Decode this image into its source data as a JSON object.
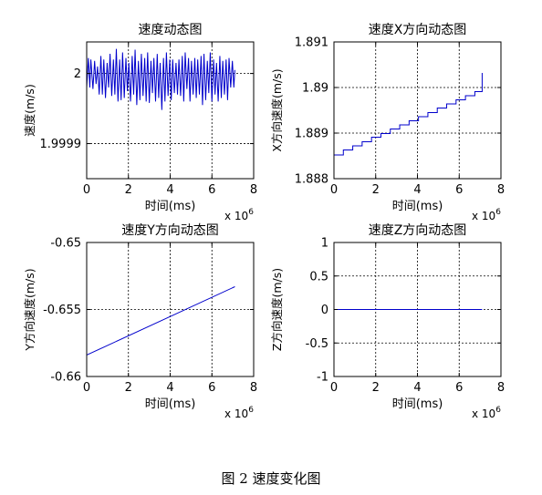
{
  "figure": {
    "caption": "图 2  速度变化图"
  },
  "chart_data": [
    {
      "type": "line",
      "title": "速度动态图",
      "xlabel": "时间(ms)",
      "ylabel": "速度(m/s)",
      "x_multiplier": "x 10",
      "x_multiplier_exp": "6",
      "xlim": [
        0,
        8
      ],
      "ylim": [
        1.99985,
        2.000045
      ],
      "xticks": [
        0,
        2,
        4,
        6,
        8
      ],
      "xtick_labels": [
        "0",
        "2",
        "4",
        "6",
        "8"
      ],
      "yticks": [
        1.9999,
        2.0
      ],
      "ytick_labels": [
        "1.9999",
        "2"
      ],
      "grid": true,
      "color": "#0000cc",
      "series": [
        {
          "x": [
            0.0,
            0.08,
            0.15,
            0.2,
            0.3,
            0.38,
            0.45,
            0.52,
            0.6,
            0.68,
            0.75,
            0.82,
            0.9,
            0.98,
            1.05,
            1.12,
            1.2,
            1.28,
            1.35,
            1.42,
            1.5,
            1.58,
            1.65,
            1.72,
            1.8,
            1.88,
            1.95,
            2.02,
            2.1,
            2.18,
            2.25,
            2.32,
            2.4,
            2.48,
            2.55,
            2.62,
            2.7,
            2.78,
            2.85,
            2.92,
            3.0,
            3.08,
            3.15,
            3.22,
            3.3,
            3.38,
            3.45,
            3.52,
            3.6,
            3.68,
            3.75,
            3.82,
            3.9,
            3.98,
            4.05,
            4.12,
            4.2,
            4.28,
            4.35,
            4.42,
            4.5,
            4.58,
            4.65,
            4.72,
            4.8,
            4.88,
            4.95,
            5.02,
            5.1,
            5.18,
            5.25,
            5.32,
            5.4,
            5.48,
            5.55,
            5.62,
            5.7,
            5.78,
            5.85,
            5.92,
            6.0,
            6.08,
            6.15,
            6.22,
            6.3,
            6.38,
            6.45,
            6.52,
            6.6,
            6.68,
            6.75,
            6.82,
            6.9,
            6.98,
            7.05,
            7.1
          ],
          "y": [
            1.99998,
            2.000022,
            1.99998,
            2.00002,
            1.999978,
            2.000018,
            1.999985,
            2.00001,
            1.99997,
            2.000025,
            1.99997,
            2.00002,
            1.999965,
            2.000015,
            1.99998,
            2.000028,
            1.999968,
            2.00002,
            1.99997,
            2.000035,
            1.99996,
            2.00002,
            1.999962,
            2.00003,
            1.999965,
            2.000022,
            1.999975,
            2.000015,
            1.99996,
            2.000025,
            1.99997,
            2.000034,
            1.999955,
            2.000018,
            1.999962,
            2.000028,
            1.999968,
            2.000022,
            1.99996,
            2.00003,
            1.999958,
            2.000018,
            1.999972,
            2.000022,
            1.99996,
            2.000028,
            1.999965,
            2.000015,
            1.999948,
            2.000022,
            1.99996,
            2.00003,
            1.999968,
            2.00002,
            1.999962,
            2.00002,
            1.999972,
            2.000015,
            1.99997,
            2.00002,
            1.999968,
            2.000025,
            1.99996,
            2.00003,
            1.999978,
            2.000022,
            1.99996,
            2.000018,
            1.99997,
            2.000022,
            1.999965,
            2.00002,
            1.99997,
            2.000025,
            1.999955,
            2.000028,
            1.999962,
            2.000018,
            1.999972,
            2.00003,
            1.99996,
            2.00002,
            1.99997,
            2.000015,
            1.99996,
            2.000025,
            1.999965,
            2.000018,
            1.99997,
            2.00002,
            1.999962,
            2.000022,
            1.99998,
            2.000018,
            1.99998,
            2.000005
          ]
        }
      ]
    },
    {
      "type": "line",
      "title": "速度X方向动态图",
      "xlabel": "时间(ms)",
      "ylabel": "X方向速度(m/s)",
      "x_multiplier": "x 10",
      "x_multiplier_exp": "6",
      "xlim": [
        0,
        8
      ],
      "ylim": [
        1.888,
        1.891
      ],
      "xticks": [
        0,
        2,
        4,
        6,
        8
      ],
      "xtick_labels": [
        "0",
        "2",
        "4",
        "6",
        "8"
      ],
      "yticks": [
        1.888,
        1.889,
        1.89,
        1.891
      ],
      "ytick_labels": [
        "1.888",
        "1.889",
        "1.89",
        "1.891"
      ],
      "grid": true,
      "color": "#0000cc",
      "series": [
        {
          "step": true,
          "x": [
            0.0,
            0.45,
            0.9,
            1.35,
            1.8,
            2.25,
            2.7,
            3.15,
            3.6,
            4.05,
            4.5,
            4.95,
            5.4,
            5.85,
            6.3,
            6.75,
            7.1
          ],
          "y": [
            1.88852,
            1.88863,
            1.88872,
            1.88881,
            1.88891,
            1.88899,
            1.88909,
            1.88918,
            1.88927,
            1.88936,
            1.88945,
            1.88955,
            1.88964,
            1.88973,
            1.88982,
            1.88991,
            1.89032
          ]
        }
      ]
    },
    {
      "type": "line",
      "title": "速度Y方向动态图",
      "xlabel": "时间(ms)",
      "ylabel": "Y方向速度(m/s)",
      "x_multiplier": "x 10",
      "x_multiplier_exp": "6",
      "xlim": [
        0,
        8
      ],
      "ylim": [
        -0.66,
        -0.65
      ],
      "xticks": [
        0,
        2,
        4,
        6,
        8
      ],
      "xtick_labels": [
        "0",
        "2",
        "4",
        "6",
        "8"
      ],
      "yticks": [
        -0.66,
        -0.655,
        -0.65
      ],
      "ytick_labels": [
        "-0.66",
        "-0.655",
        "-0.65"
      ],
      "grid": true,
      "color": "#0000cc",
      "series": [
        {
          "x": [
            0.0,
            7.1
          ],
          "y": [
            -0.6584,
            -0.6533
          ]
        }
      ]
    },
    {
      "type": "line",
      "title": "速度Z方向动态图",
      "xlabel": "时间(ms)",
      "ylabel": "Z方向速度(m/s)",
      "x_multiplier": "x 10",
      "x_multiplier_exp": "6",
      "xlim": [
        0,
        8
      ],
      "ylim": [
        -1,
        1
      ],
      "xticks": [
        0,
        2,
        4,
        6,
        8
      ],
      "xtick_labels": [
        "0",
        "2",
        "4",
        "6",
        "8"
      ],
      "yticks": [
        -1,
        -0.5,
        0,
        0.5,
        1
      ],
      "ytick_labels": [
        "-1",
        "-0.5",
        "0",
        "0.5",
        "1"
      ],
      "grid": true,
      "color": "#0000cc",
      "series": [
        {
          "x": [
            0.0,
            7.1
          ],
          "y": [
            0,
            0
          ]
        }
      ]
    }
  ]
}
